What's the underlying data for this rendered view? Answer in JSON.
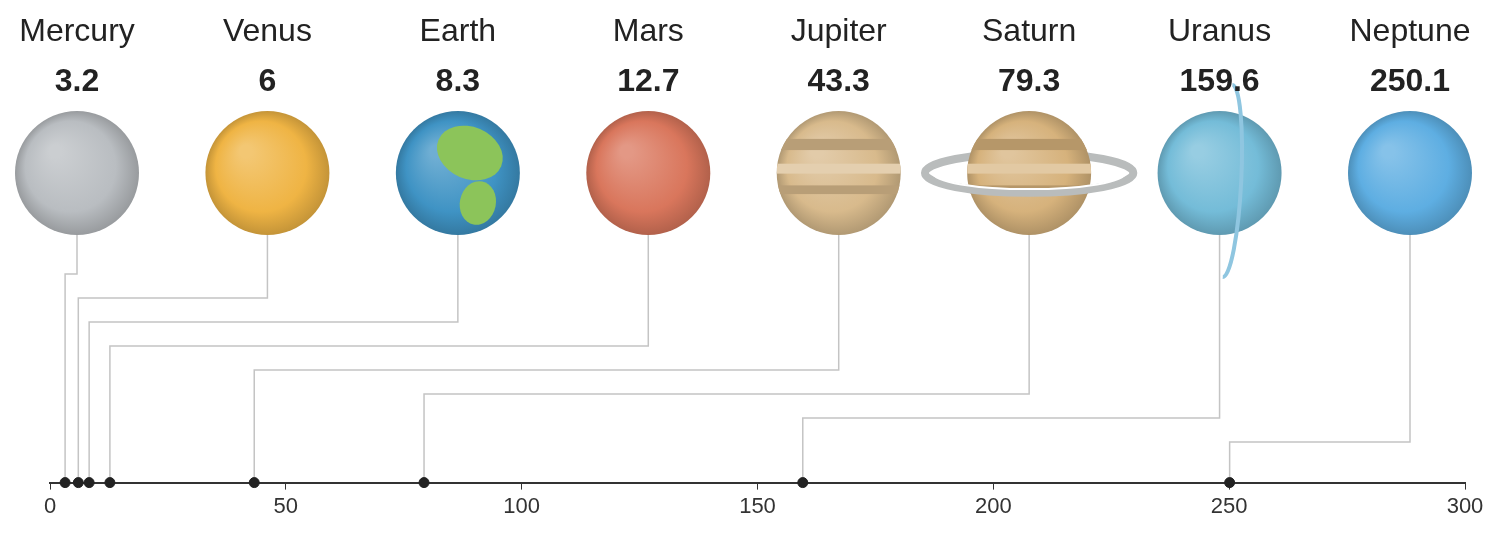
{
  "chart_data": {
    "type": "scatter",
    "categories": [
      "Mercury",
      "Venus",
      "Earth",
      "Mars",
      "Jupiter",
      "Saturn",
      "Uranus",
      "Neptune"
    ],
    "values": [
      3.2,
      6,
      8.3,
      12.7,
      43.3,
      79.3,
      159.6,
      250.1
    ],
    "colors": [
      "#b9bdc1",
      "#efb444",
      "#3f93c4",
      "#d9765c",
      "#d8ba8c",
      "#d6b27c",
      "#74bcd8",
      "#5eaee2"
    ],
    "xlim": [
      0,
      300
    ],
    "xticks": [
      0,
      50,
      100,
      150,
      200,
      250,
      300
    ],
    "grid": false,
    "data_labels": true,
    "tick_labels": "x"
  }
}
